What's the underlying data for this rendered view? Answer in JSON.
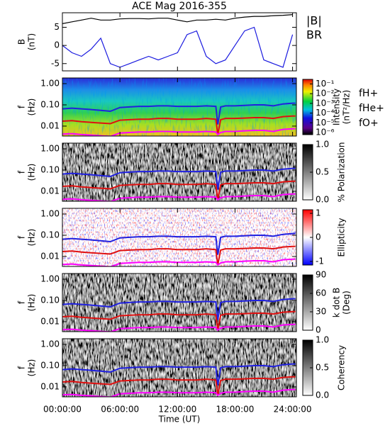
{
  "chart_data": [
    {
      "type": "line",
      "title": "ACE Mag 2016-355",
      "ylabel": [
        "B",
        "(nT)"
      ],
      "x": [
        0,
        1,
        2,
        3,
        4,
        5,
        6,
        7,
        8,
        9,
        10,
        11,
        12,
        13,
        14,
        15,
        16,
        17,
        18,
        19,
        20,
        21,
        22,
        23,
        24
      ],
      "xlim": [
        0,
        24.4
      ],
      "ylim": [
        -7,
        9
      ],
      "yticks": [
        -5,
        0,
        5
      ],
      "series": [
        {
          "name": "|B|",
          "color": "#000000",
          "values": [
            6,
            6.5,
            7,
            7.5,
            7,
            7,
            7.3,
            7.4,
            7.4,
            7.3,
            7.5,
            7.5,
            7,
            6.5,
            7,
            7,
            7.2,
            7,
            7.5,
            7.8,
            8,
            8,
            8.2,
            8.3,
            8.5
          ]
        },
        {
          "name": "BR",
          "color": "#1a1adf",
          "values": [
            0,
            -2,
            -3,
            -1,
            2,
            -5,
            -6,
            -5,
            -4,
            -3,
            -4,
            -3,
            -2,
            3,
            4,
            -3,
            -5,
            -4,
            0,
            4,
            5,
            -4,
            -5,
            -6,
            3
          ]
        }
      ]
    },
    {
      "type": "spectrogram",
      "palette": "rainbow",
      "ylabel": [
        "f",
        "(Hz)"
      ],
      "ylog": true,
      "x": [
        0,
        1,
        2,
        3,
        4,
        5,
        6,
        7,
        8,
        9,
        10,
        11,
        12,
        13,
        14,
        15,
        16,
        16.2,
        16.5,
        17,
        18,
        19,
        20,
        21,
        22,
        23,
        24,
        24.3
      ],
      "xlim": [
        0,
        24.4
      ],
      "ylim": [
        0.0034,
        1.85
      ],
      "yticks": [
        0.01,
        {
          "value": 0.1,
          "label": "0.10"
        },
        {
          "value": 1,
          "label": "1.00"
        }
      ],
      "series": [
        {
          "name": "fH+",
          "color": "#2020e0",
          "values": [
            0.065,
            0.07,
            0.065,
            0.06,
            0.055,
            0.05,
            0.075,
            0.08,
            0.085,
            0.085,
            0.09,
            0.09,
            0.085,
            0.085,
            0.085,
            0.09,
            0.085,
            0.012,
            0.08,
            0.09,
            0.09,
            0.095,
            0.1,
            0.1,
            0.09,
            0.11,
            0.12,
            0.12
          ]
        },
        {
          "name": "fHe+",
          "color": "#e01010",
          "values": [
            0.017,
            0.018,
            0.016,
            0.015,
            0.014,
            0.013,
            0.019,
            0.02,
            0.021,
            0.021,
            0.023,
            0.023,
            0.021,
            0.021,
            0.021,
            0.023,
            0.021,
            0.004,
            0.02,
            0.023,
            0.023,
            0.024,
            0.025,
            0.025,
            0.023,
            0.028,
            0.03,
            0.03
          ]
        },
        {
          "name": "fO+",
          "color": "#ff00ff",
          "values": [
            0.0042,
            0.0044,
            0.004,
            0.0038,
            0.0035,
            0.0033,
            0.0047,
            0.005,
            0.0053,
            0.0053,
            0.0056,
            0.0056,
            0.0053,
            0.0053,
            0.0053,
            0.0056,
            0.0053,
            0.004,
            0.005,
            0.0056,
            0.0056,
            0.006,
            0.0063,
            0.0063,
            0.0056,
            0.007,
            0.0075,
            0.0075
          ]
        }
      ],
      "colorbar": {
        "label": [
          "Intensity",
          "(nT²/Hz)"
        ],
        "log": true,
        "lim": [
          6e-07,
          0.3
        ],
        "ticks": [
          {
            "value": 0.1,
            "label": "10⁻¹"
          },
          {
            "value": 0.01,
            "label": "10⁻²"
          },
          {
            "value": 0.001,
            "label": "10⁻³"
          },
          {
            "value": 0.0001,
            "label": "10⁻⁴"
          },
          {
            "value": 1e-05,
            "label": "10⁻⁵"
          },
          {
            "value": 1e-06,
            "label": "10⁻⁶"
          }
        ]
      }
    },
    {
      "type": "spectrogram",
      "palette": "gray",
      "ylabel": [
        "f",
        "(Hz)"
      ],
      "ylog": true,
      "x": [
        0,
        1,
        2,
        3,
        4,
        5,
        6,
        7,
        8,
        9,
        10,
        11,
        12,
        13,
        14,
        15,
        16,
        16.2,
        16.5,
        17,
        18,
        19,
        20,
        21,
        22,
        23,
        24,
        24.3
      ],
      "xlim": [
        0,
        24.4
      ],
      "ylim": [
        0.0034,
        1.85
      ],
      "yticks": [
        0.01,
        {
          "value": 0.1,
          "label": "0.10"
        },
        {
          "value": 1,
          "label": "1.00"
        }
      ],
      "series": [
        {
          "color": "#2020e0",
          "values": [
            0.065,
            0.07,
            0.065,
            0.06,
            0.055,
            0.05,
            0.075,
            0.08,
            0.085,
            0.085,
            0.09,
            0.09,
            0.085,
            0.085,
            0.085,
            0.09,
            0.085,
            0.012,
            0.08,
            0.09,
            0.09,
            0.095,
            0.1,
            0.1,
            0.09,
            0.11,
            0.12,
            0.12
          ]
        },
        {
          "color": "#e01010",
          "values": [
            0.017,
            0.018,
            0.016,
            0.015,
            0.014,
            0.013,
            0.019,
            0.02,
            0.021,
            0.021,
            0.023,
            0.023,
            0.021,
            0.021,
            0.021,
            0.023,
            0.021,
            0.004,
            0.02,
            0.023,
            0.023,
            0.024,
            0.025,
            0.025,
            0.023,
            0.028,
            0.03,
            0.03
          ]
        },
        {
          "color": "#ff00ff",
          "values": [
            0.0042,
            0.0044,
            0.004,
            0.0038,
            0.0035,
            0.0033,
            0.0047,
            0.005,
            0.0053,
            0.0053,
            0.0056,
            0.0056,
            0.0053,
            0.0053,
            0.0053,
            0.0056,
            0.0053,
            0.004,
            0.005,
            0.0056,
            0.0056,
            0.006,
            0.0063,
            0.0063,
            0.0056,
            0.007,
            0.0075,
            0.0075
          ]
        }
      ],
      "colorbar": {
        "label": [
          "% Polarization"
        ],
        "log": false,
        "lim": [
          0,
          1
        ],
        "ticks": [
          {
            "value": 0,
            "label": "0.0"
          },
          {
            "value": 0.5,
            "label": "0.5"
          },
          {
            "value": 1,
            "label": "1.0"
          }
        ]
      }
    },
    {
      "type": "spectrogram",
      "palette": "red-blue",
      "ylabel": [
        "f",
        "(Hz)"
      ],
      "ylog": true,
      "x": [
        0,
        1,
        2,
        3,
        4,
        5,
        6,
        7,
        8,
        9,
        10,
        11,
        12,
        13,
        14,
        15,
        16,
        16.2,
        16.5,
        17,
        18,
        19,
        20,
        21,
        22,
        23,
        24,
        24.3
      ],
      "xlim": [
        0,
        24.4
      ],
      "ylim": [
        0.0034,
        1.85
      ],
      "yticks": [
        0.01,
        {
          "value": 0.1,
          "label": "0.10"
        },
        {
          "value": 1,
          "label": "1.00"
        }
      ],
      "series": [
        {
          "color": "#2020e0",
          "values": [
            0.065,
            0.07,
            0.065,
            0.06,
            0.055,
            0.05,
            0.075,
            0.08,
            0.085,
            0.085,
            0.09,
            0.09,
            0.085,
            0.085,
            0.085,
            0.09,
            0.085,
            0.012,
            0.08,
            0.09,
            0.09,
            0.095,
            0.1,
            0.1,
            0.09,
            0.11,
            0.12,
            0.12
          ]
        },
        {
          "color": "#e01010",
          "values": [
            0.017,
            0.018,
            0.016,
            0.015,
            0.014,
            0.013,
            0.019,
            0.02,
            0.021,
            0.021,
            0.023,
            0.023,
            0.021,
            0.021,
            0.021,
            0.023,
            0.021,
            0.004,
            0.02,
            0.023,
            0.023,
            0.024,
            0.025,
            0.025,
            0.023,
            0.028,
            0.03,
            0.03
          ]
        },
        {
          "color": "#ff00ff",
          "values": [
            0.0042,
            0.0044,
            0.004,
            0.0038,
            0.0035,
            0.0033,
            0.0047,
            0.005,
            0.0053,
            0.0053,
            0.0056,
            0.0056,
            0.0053,
            0.0053,
            0.0053,
            0.0056,
            0.0053,
            0.004,
            0.005,
            0.0056,
            0.0056,
            0.006,
            0.0063,
            0.0063,
            0.0056,
            0.007,
            0.0075,
            0.0075
          ]
        }
      ],
      "colorbar": {
        "label": [
          "Ellipticity"
        ],
        "log": false,
        "lim": [
          -1.15,
          1.15
        ],
        "ticks": [
          -1,
          0,
          1
        ]
      }
    },
    {
      "type": "spectrogram",
      "palette": "gray",
      "ylabel": [
        "f",
        "(Hz)"
      ],
      "ylog": true,
      "x": [
        0,
        1,
        2,
        3,
        4,
        5,
        6,
        7,
        8,
        9,
        10,
        11,
        12,
        13,
        14,
        15,
        16,
        16.2,
        16.5,
        17,
        18,
        19,
        20,
        21,
        22,
        23,
        24,
        24.3
      ],
      "xlim": [
        0,
        24.4
      ],
      "ylim": [
        0.0034,
        1.85
      ],
      "yticks": [
        0.01,
        {
          "value": 0.1,
          "label": "0.10"
        },
        {
          "value": 1,
          "label": "1.00"
        }
      ],
      "series": [
        {
          "color": "#2020e0",
          "values": [
            0.065,
            0.07,
            0.065,
            0.06,
            0.055,
            0.05,
            0.075,
            0.08,
            0.085,
            0.085,
            0.09,
            0.09,
            0.085,
            0.085,
            0.085,
            0.09,
            0.085,
            0.012,
            0.08,
            0.09,
            0.09,
            0.095,
            0.1,
            0.1,
            0.09,
            0.11,
            0.12,
            0.12
          ]
        },
        {
          "color": "#e01010",
          "values": [
            0.017,
            0.018,
            0.016,
            0.015,
            0.014,
            0.013,
            0.019,
            0.02,
            0.021,
            0.021,
            0.023,
            0.023,
            0.021,
            0.021,
            0.021,
            0.023,
            0.021,
            0.004,
            0.02,
            0.023,
            0.023,
            0.024,
            0.025,
            0.025,
            0.023,
            0.028,
            0.03,
            0.03
          ]
        },
        {
          "color": "#ff00ff",
          "values": [
            0.0042,
            0.0044,
            0.004,
            0.0038,
            0.0035,
            0.0033,
            0.0047,
            0.005,
            0.0053,
            0.0053,
            0.0056,
            0.0056,
            0.0053,
            0.0053,
            0.0053,
            0.0056,
            0.0053,
            0.004,
            0.005,
            0.0056,
            0.0056,
            0.006,
            0.0063,
            0.0063,
            0.0056,
            0.007,
            0.0075,
            0.0075
          ]
        }
      ],
      "colorbar": {
        "label": [
          "k dot B",
          "(Deg)"
        ],
        "log": false,
        "lim": [
          0,
          90
        ],
        "ticks": [
          0,
          30,
          60,
          90
        ]
      }
    },
    {
      "type": "spectrogram",
      "palette": "gray",
      "ylabel": [
        "f",
        "(Hz)"
      ],
      "ylog": true,
      "x": [
        0,
        1,
        2,
        3,
        4,
        5,
        6,
        7,
        8,
        9,
        10,
        11,
        12,
        13,
        14,
        15,
        16,
        16.2,
        16.5,
        17,
        18,
        19,
        20,
        21,
        22,
        23,
        24,
        24.3
      ],
      "xlim": [
        0,
        24.4
      ],
      "ylim": [
        0.0034,
        1.85
      ],
      "yticks": [
        0.01,
        {
          "value": 0.1,
          "label": "0.10"
        },
        {
          "value": 1,
          "label": "1.00"
        }
      ],
      "series": [
        {
          "color": "#2020e0",
          "values": [
            0.065,
            0.07,
            0.065,
            0.06,
            0.055,
            0.05,
            0.075,
            0.08,
            0.085,
            0.085,
            0.09,
            0.09,
            0.085,
            0.085,
            0.085,
            0.09,
            0.085,
            0.012,
            0.08,
            0.09,
            0.09,
            0.095,
            0.1,
            0.1,
            0.09,
            0.11,
            0.12,
            0.12
          ]
        },
        {
          "color": "#e01010",
          "values": [
            0.017,
            0.018,
            0.016,
            0.015,
            0.014,
            0.013,
            0.019,
            0.02,
            0.021,
            0.021,
            0.023,
            0.023,
            0.021,
            0.021,
            0.021,
            0.023,
            0.021,
            0.004,
            0.02,
            0.023,
            0.023,
            0.024,
            0.025,
            0.025,
            0.023,
            0.028,
            0.03,
            0.03
          ]
        },
        {
          "color": "#ff00ff",
          "values": [
            0.0042,
            0.0044,
            0.004,
            0.0038,
            0.0035,
            0.0033,
            0.0047,
            0.005,
            0.0053,
            0.0053,
            0.0056,
            0.0056,
            0.0053,
            0.0053,
            0.0053,
            0.0056,
            0.0053,
            0.004,
            0.005,
            0.0056,
            0.0056,
            0.006,
            0.0063,
            0.0063,
            0.0056,
            0.007,
            0.0075,
            0.0075
          ]
        }
      ],
      "colorbar": {
        "label": [
          "Coherency"
        ],
        "log": false,
        "lim": [
          0,
          1
        ],
        "ticks": [
          {
            "value": 0,
            "label": "0.0"
          },
          {
            "value": 0.5,
            "label": "0.5"
          },
          {
            "value": 1,
            "label": "1.0"
          }
        ]
      },
      "xlabel": "Time (UT)",
      "xticks": [
        {
          "value": 0,
          "label": "00:00:00"
        },
        {
          "value": 6,
          "label": "06:00:00"
        },
        {
          "value": 12,
          "label": "12:00:00"
        },
        {
          "value": 18,
          "label": "18:00:00"
        },
        {
          "value": 24,
          "label": "24:00:00"
        }
      ]
    }
  ]
}
